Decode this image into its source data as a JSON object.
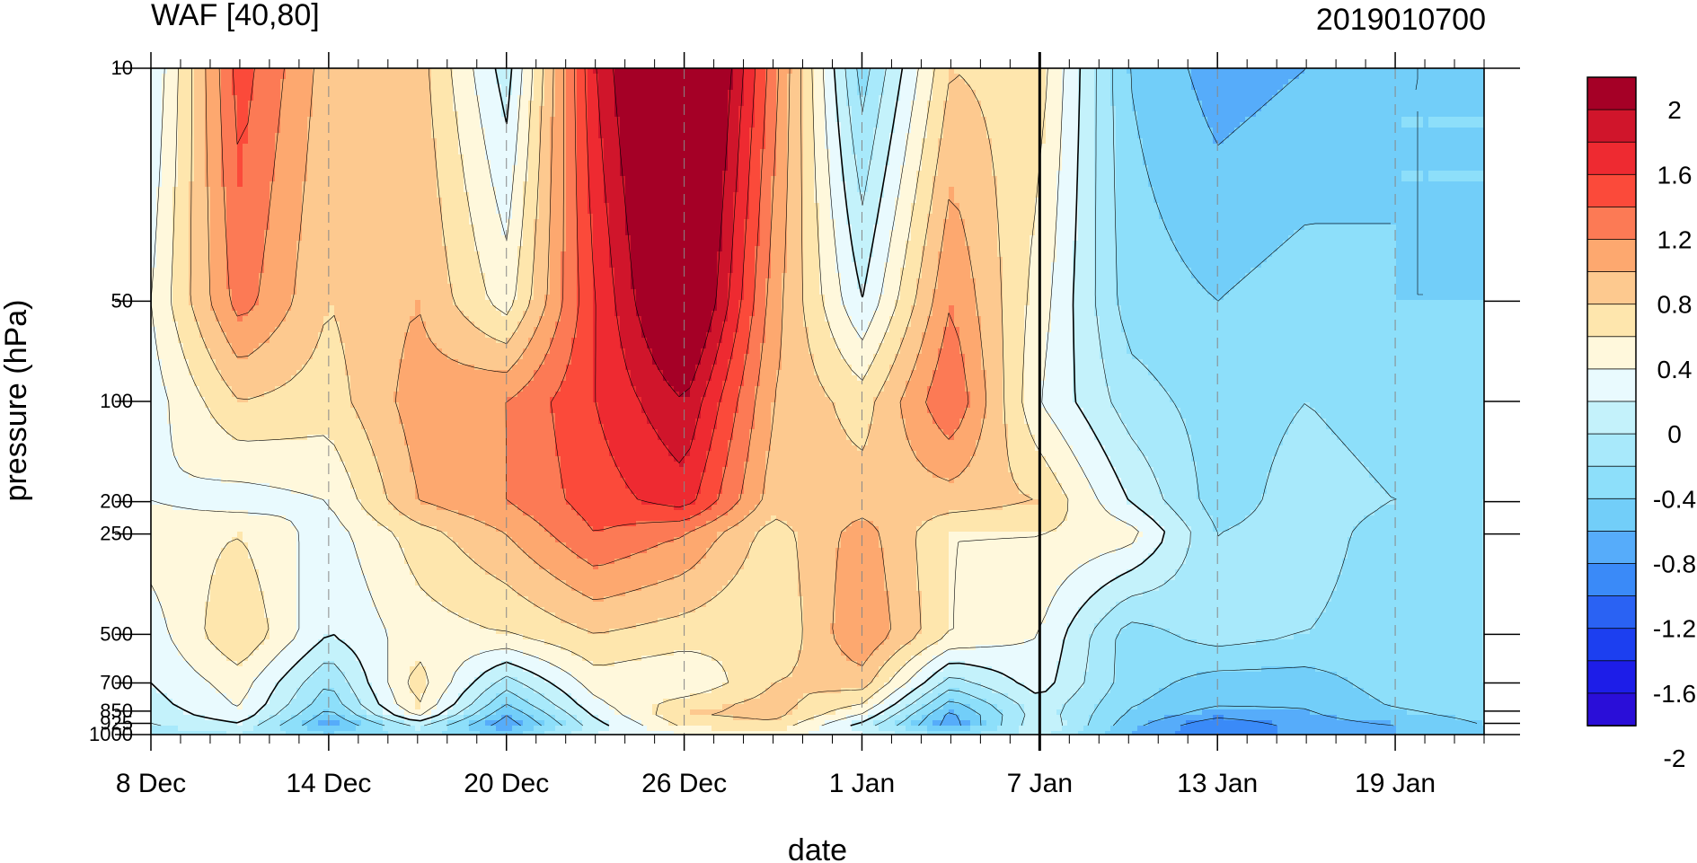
{
  "chart_data": {
    "type": "heatmap",
    "title_left": "WAF [40,80]",
    "title_right": "2019010700",
    "xlabel": "date",
    "ylabel": "pressure (hPa)",
    "x_tick_labels": [
      "8 Dec",
      "14 Dec",
      "20 Dec",
      "26 Dec",
      "1 Jan",
      "7 Jan",
      "13 Jan",
      "19 Jan"
    ],
    "x_tick_days": [
      0,
      6,
      12,
      18,
      24,
      30,
      36,
      42
    ],
    "x_range_days": [
      0,
      45
    ],
    "current_day": 30,
    "y_levels": [
      10,
      50,
      100,
      200,
      250,
      500,
      700,
      850,
      925,
      1000
    ],
    "y_tick_labels": [
      "10",
      "50",
      "100",
      "200",
      "250",
      "500",
      "700",
      "850",
      "925",
      "1000"
    ],
    "ylim": [
      10,
      1000
    ],
    "y_scale": "log-pressure",
    "grid": "dashed vertical at major ticks",
    "colorbar": {
      "labels": [
        "2",
        "1.6",
        "1.2",
        "0.8",
        "0.4",
        "0",
        "-0.4",
        "-0.8",
        "-1.2",
        "-1.6",
        "-2"
      ],
      "colors": [
        "#a50026",
        "#d0152b",
        "#ee2a31",
        "#fb4a3a",
        "#fc7a55",
        "#fda86f",
        "#fdc98f",
        "#fee6ad",
        "#fff8dc",
        "#e9fafe",
        "#c4f2fb",
        "#a8e9fb",
        "#8ddffa",
        "#72cef9",
        "#56acfa",
        "#3a8af8",
        "#2a62f3",
        "#1c3ff0",
        "#1d1de8",
        "#2a0ed8"
      ]
    },
    "values_comment_free_grid": true,
    "days": [
      0,
      3,
      6,
      9,
      12,
      15,
      18,
      21,
      24,
      27,
      30,
      33,
      36,
      39,
      42,
      45
    ],
    "values": [
      [
        0.0,
        1.3,
        0.7,
        0.7,
        -0.1,
        1.6,
        2.6,
        1.1,
        -0.5,
        0.6,
        0.5,
        -0.6,
        -0.9,
        -0.8,
        -0.6,
        -0.6
      ],
      [
        0.2,
        1.1,
        0.6,
        0.8,
        0.3,
        1.4,
        2.3,
        0.9,
        0.0,
        1.0,
        0.3,
        -0.5,
        -0.6,
        -0.5,
        -0.6,
        -0.6
      ],
      [
        0.1,
        0.6,
        0.5,
        0.9,
        1.0,
        1.4,
        1.8,
        0.8,
        0.5,
        1.2,
        0.2,
        -0.3,
        -0.5,
        -0.4,
        -0.5,
        -0.5
      ],
      [
        0.2,
        0.1,
        0.2,
        0.8,
        1.0,
        1.3,
        1.5,
        0.7,
        0.7,
        0.7,
        0.6,
        0.0,
        -0.5,
        -0.3,
        -0.4,
        -0.4
      ],
      [
        0.3,
        0.4,
        0.1,
        0.5,
        0.8,
        1.2,
        1.0,
        0.5,
        0.9,
        0.4,
        0.4,
        0.3,
        -0.4,
        -0.3,
        -0.5,
        -0.4
      ],
      [
        0.1,
        0.6,
        0.0,
        0.3,
        0.4,
        0.6,
        0.5,
        0.4,
        1.0,
        0.4,
        0.2,
        -0.5,
        -0.3,
        -0.4,
        -0.5,
        -0.4
      ],
      [
        0.0,
        0.3,
        -0.4,
        0.5,
        -0.3,
        0.3,
        0.2,
        0.6,
        0.7,
        -0.3,
        0.1,
        -0.5,
        -0.7,
        -0.7,
        -0.5,
        -0.4
      ],
      [
        -0.1,
        0.2,
        -0.6,
        0.4,
        -0.7,
        0.1,
        0.6,
        0.7,
        0.3,
        -0.8,
        -0.1,
        -0.6,
        -0.8,
        -0.8,
        -0.6,
        -0.5
      ],
      [
        -0.2,
        0.0,
        -0.9,
        -0.1,
        -1.0,
        -0.1,
        0.5,
        0.6,
        -0.1,
        -1.0,
        0.0,
        -0.7,
        -1.2,
        -0.9,
        -0.8,
        -0.6
      ],
      [
        -0.3,
        -0.2,
        -0.6,
        -0.3,
        -0.7,
        0.0,
        0.2,
        0.3,
        0.0,
        -0.5,
        -0.1,
        -0.8,
        -1.2,
        -0.9,
        -0.8,
        -0.6
      ]
    ]
  }
}
